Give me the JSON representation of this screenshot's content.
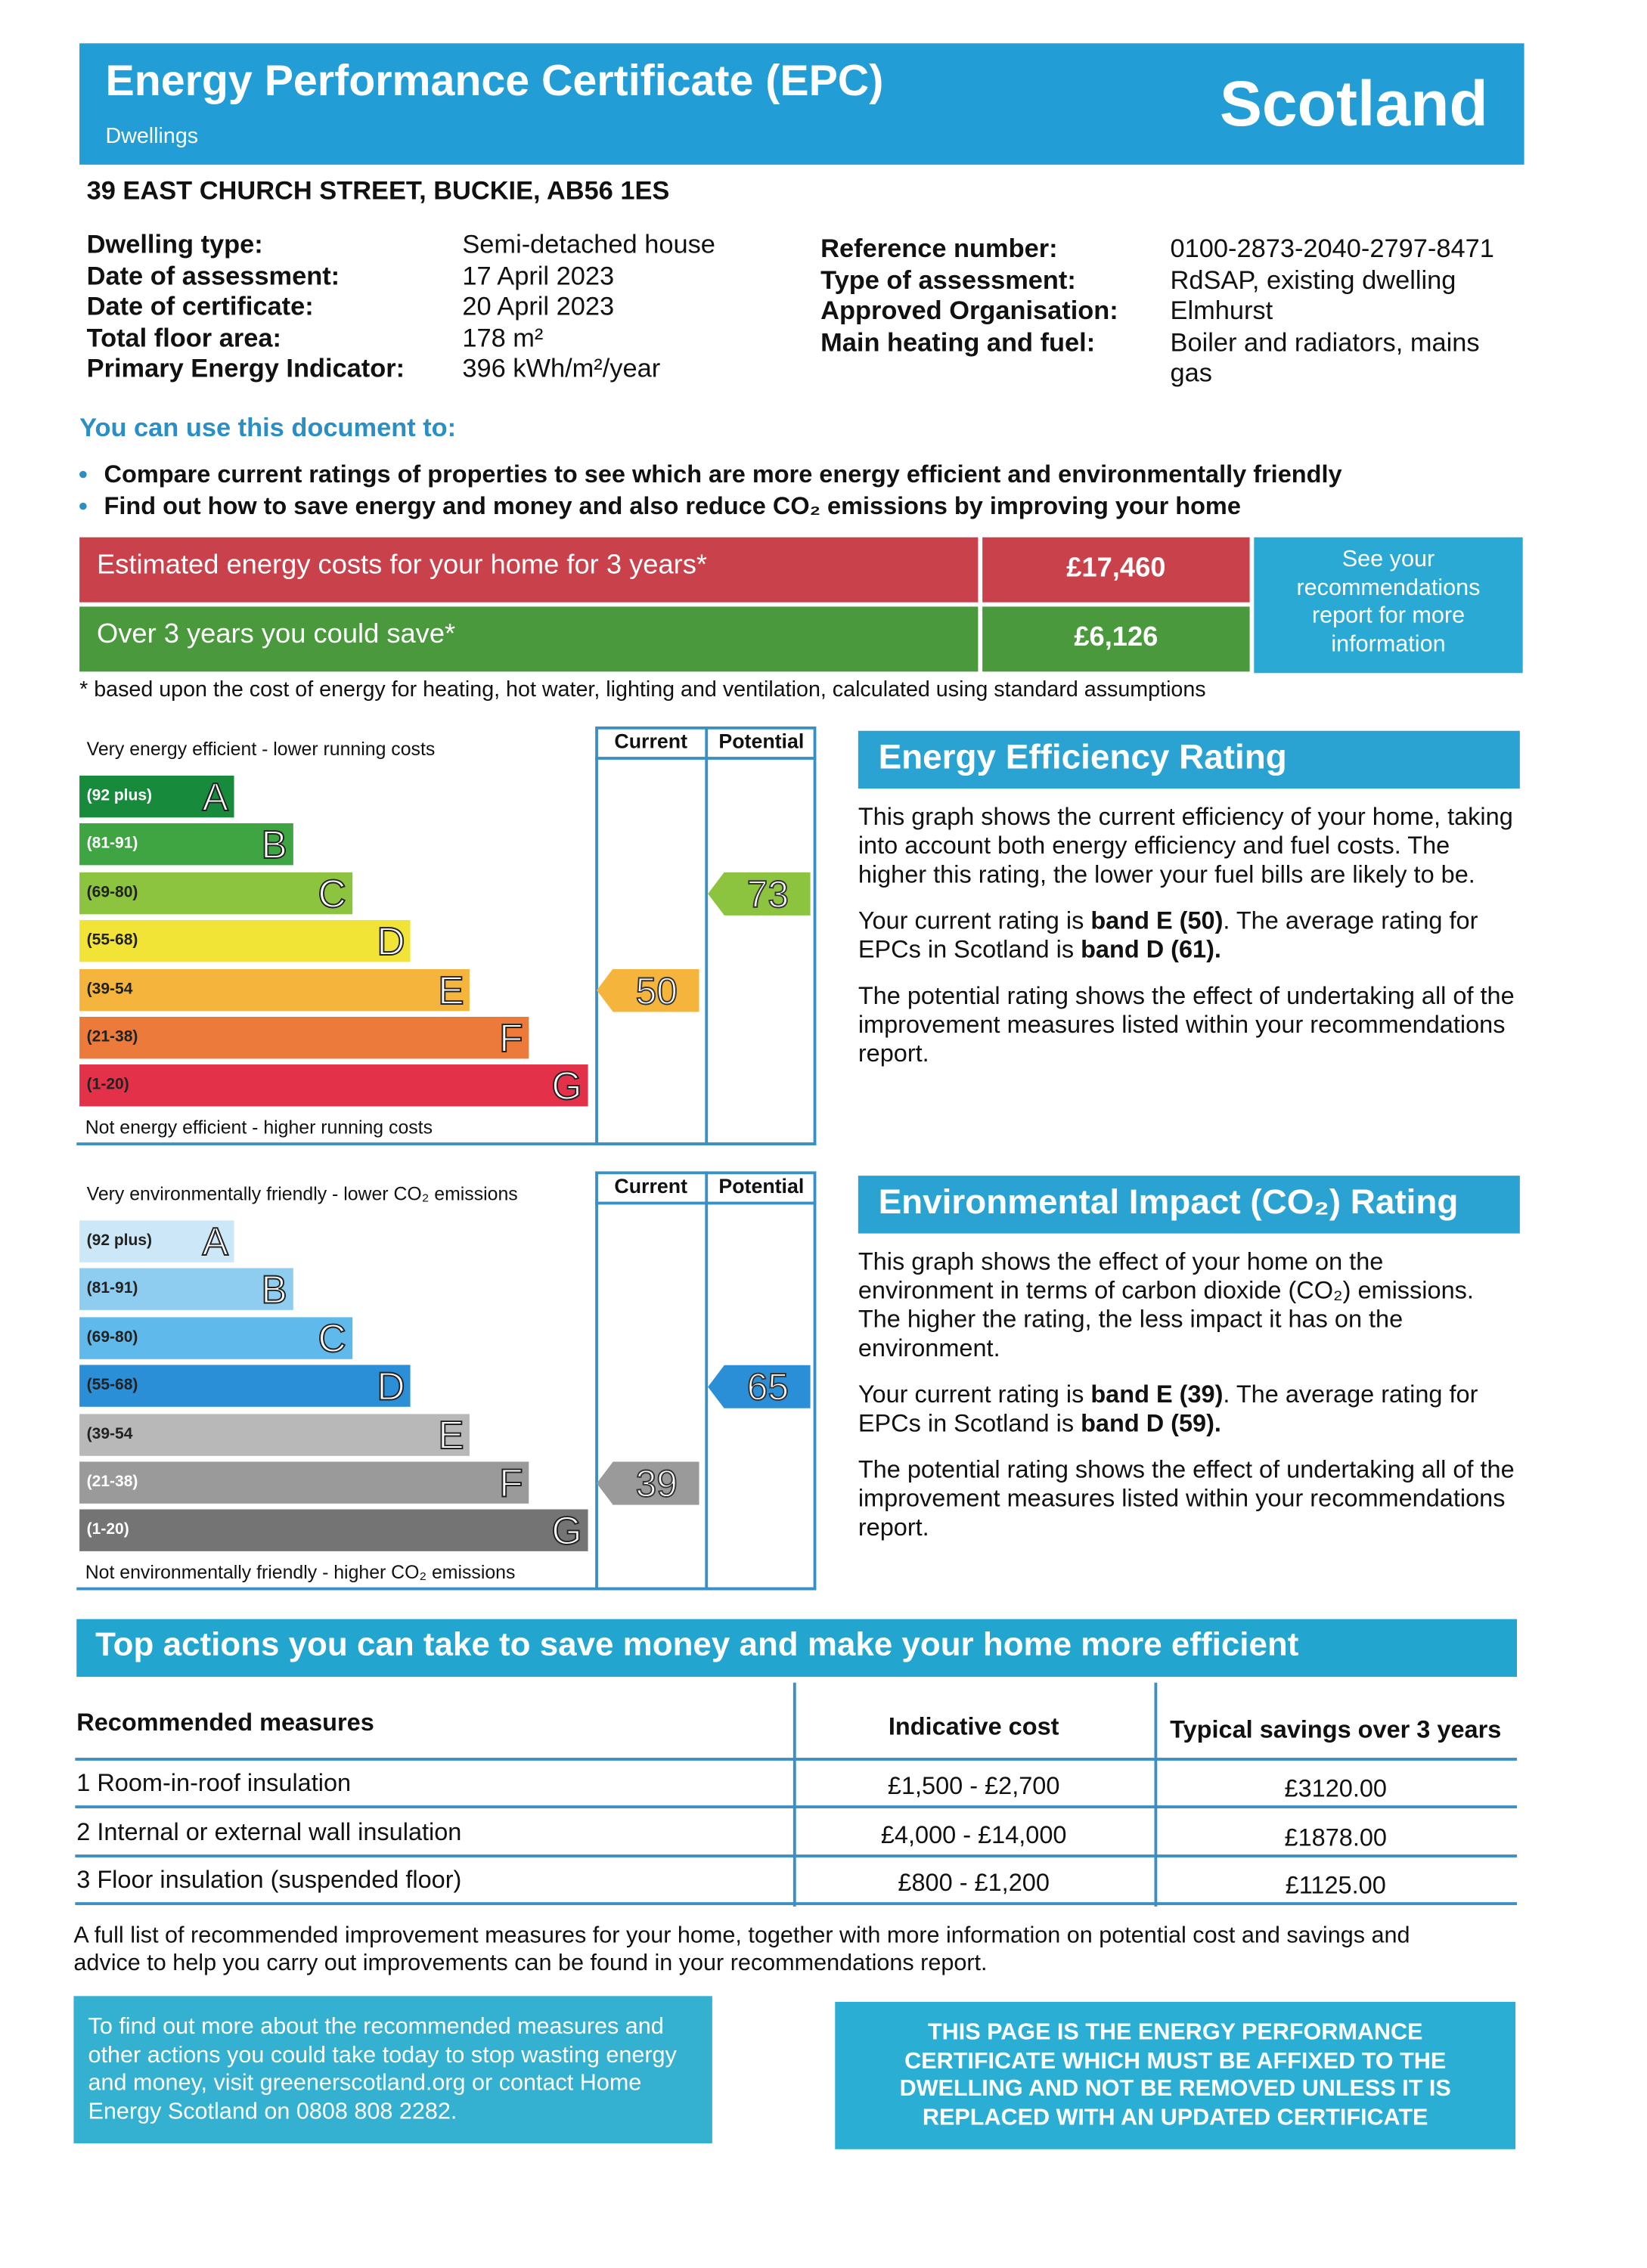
{
  "header": {
    "title": "Energy Performance Certificate (EPC)",
    "subtitle": "Dwellings",
    "region": "Scotland"
  },
  "address": "39 EAST CHURCH STREET, BUCKIE, AB56 1ES",
  "details_left": [
    {
      "label": "Dwelling type:",
      "value": "Semi-detached house"
    },
    {
      "label": "Date of assessment:",
      "value": "17 April 2023"
    },
    {
      "label": "Date of certificate:",
      "value": "20 April 2023"
    },
    {
      "label": "Total floor area:",
      "value": "178 m²"
    },
    {
      "label": "Primary Energy Indicator:",
      "value": "396 kWh/m²/year"
    }
  ],
  "details_right": [
    {
      "label": "Reference number:",
      "value": "0100-2873-2040-2797-8471"
    },
    {
      "label": "Type of assessment:",
      "value": "RdSAP, existing dwelling"
    },
    {
      "label": "Approved Organisation:",
      "value": "Elmhurst"
    },
    {
      "label": "Main heating and fuel:",
      "value": "Boiler and radiators, mains gas"
    }
  ],
  "uses": {
    "heading": "You can use this document to:",
    "items": [
      "Compare current ratings of properties to see which are more energy efficient and environmentally friendly",
      "Find out how to save energy and money and also reduce CO₂ emissions by improving your home"
    ]
  },
  "costs": {
    "rows": [
      {
        "label": "Estimated energy costs for your home for 3 years*",
        "value": "£17,460"
      },
      {
        "label": "Over 3 years you could save*",
        "value": "£6,126"
      }
    ],
    "link": "See your recommendations report for more information",
    "footnote": "* based upon the cost of energy for heating, hot water, lighting and ventilation, calculated using standard assumptions"
  },
  "efficiency": {
    "top_label": "Very energy efficient - lower running costs",
    "bottom_label": "Not energy efficient - higher running costs",
    "columns": [
      "Current",
      "Potential"
    ],
    "bands": [
      {
        "range": "(92 plus)",
        "letter": "A"
      },
      {
        "range": "(81-91)",
        "letter": "B"
      },
      {
        "range": "(69-80)",
        "letter": "C"
      },
      {
        "range": "(55-68)",
        "letter": "D"
      },
      {
        "range": "(39-54",
        "letter": "E"
      },
      {
        "range": "(21-38)",
        "letter": "F"
      },
      {
        "range": "(1-20)",
        "letter": "G"
      }
    ],
    "current": 50,
    "potential": 73,
    "title": "Energy Efficiency Rating",
    "paragraphs": [
      [
        "This graph shows the current efficiency of your home, taking into account both energy efficiency and fuel costs. The higher this rating, the lower your fuel bills are likely to be."
      ],
      [
        "Your current rating is ",
        "band E (50)",
        ". The average rating for EPCs in Scotland is ",
        "band D (61)."
      ],
      [
        "The potential rating shows the effect of undertaking all of the improvement measures listed within your recommendations report."
      ]
    ]
  },
  "environmental": {
    "top_label": "Very environmentally friendly - lower CO₂ emissions",
    "bottom_label": "Not environmentally friendly - higher CO₂ emissions",
    "columns": [
      "Current",
      "Potential"
    ],
    "bands": [
      {
        "range": "(92 plus)",
        "letter": "A"
      },
      {
        "range": "(81-91)",
        "letter": "B"
      },
      {
        "range": "(69-80)",
        "letter": "C"
      },
      {
        "range": "(55-68)",
        "letter": "D"
      },
      {
        "range": "(39-54",
        "letter": "E"
      },
      {
        "range": "(21-38)",
        "letter": "F"
      },
      {
        "range": "(1-20)",
        "letter": "G"
      }
    ],
    "current": 39,
    "potential": 65,
    "title": "Environmental Impact (CO₂) Rating",
    "paragraphs": [
      [
        "This graph shows the effect of your home on the environment in terms of carbon dioxide (CO₂) emissions. The higher the rating, the less impact it has on the environment."
      ],
      [
        "Your current rating is ",
        "band E (39)",
        ". The average rating for EPCs in Scotland is ",
        "band D (59)."
      ],
      [
        "The potential rating shows the effect of undertaking all of the improvement measures listed within your recommendations report."
      ]
    ]
  },
  "actions": {
    "title": "Top actions you can take to save money and make your home more efficient",
    "headers": [
      "Recommended measures",
      "Indicative cost",
      "Typical savings over 3 years"
    ],
    "rows": [
      [
        "1 Room-in-roof insulation",
        "£1,500 - £2,700",
        "£3120.00"
      ],
      [
        "2 Internal or external wall insulation",
        "£4,000 - £14,000",
        "£1878.00"
      ],
      [
        "3 Floor insulation (suspended floor)",
        "£800 - £1,200",
        "£1125.00"
      ]
    ],
    "note": "A full list of recommended improvement measures for your home, together with more information on potential cost and savings and advice to help you carry out improvements can be found in your recommendations report."
  },
  "footer": {
    "left": "To find out more about the recommended measures and other actions you could take today to stop wasting energy and money, visit greenerscotland.org or contact Home Energy Scotland on 0808 808 2282.",
    "right": "THIS PAGE IS THE ENERGY PERFORMANCE CERTIFICATE WHICH MUST BE AFFIXED TO THE DWELLING AND NOT BE REMOVED UNLESS IT IS REPLACED WITH AN UPDATED CERTIFICATE"
  }
}
